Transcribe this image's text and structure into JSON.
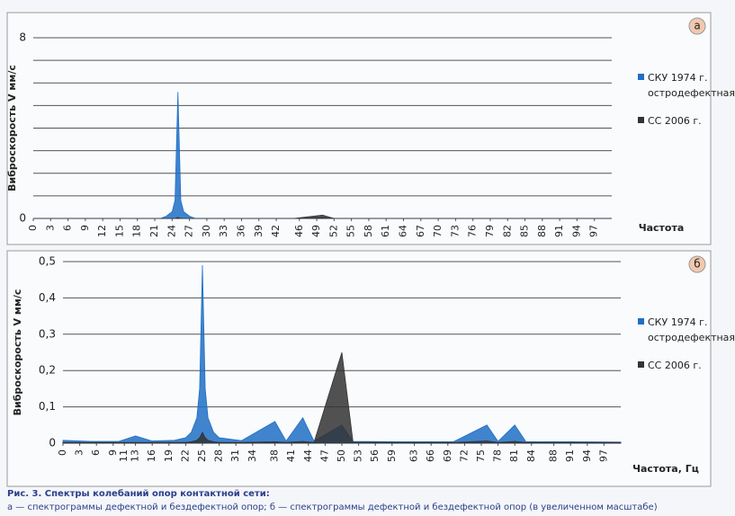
{
  "chart_data": [
    {
      "type": "area",
      "badge": "а",
      "ylabel": "Виброскорость V мм/с",
      "xlabel": "Частота",
      "xlim": [
        0,
        100
      ],
      "xticks": [
        0,
        3,
        6,
        9,
        12,
        15,
        18,
        21,
        24,
        27,
        30,
        33,
        36,
        39,
        42,
        46,
        49,
        52,
        55,
        58,
        61,
        64,
        67,
        70,
        73,
        76,
        79,
        82,
        85,
        88,
        91,
        94,
        97
      ],
      "ylim": [
        0,
        8
      ],
      "yticks": [
        0,
        8
      ],
      "ygrid": [
        1,
        2,
        3,
        4,
        5,
        6,
        7
      ],
      "x": [
        0,
        5,
        10,
        13,
        16,
        20,
        22,
        23,
        24,
        24.5,
        25,
        25.5,
        26,
        27,
        28,
        32,
        38,
        40,
        43,
        45,
        50,
        52,
        60,
        70,
        76,
        78,
        81,
        83,
        90,
        100
      ],
      "series": [
        {
          "name": "СКУ 1974 г. остродефектная",
          "color": "#1f6fc5",
          "values": [
            0,
            0,
            0,
            0,
            0,
            0,
            0,
            0.1,
            0.3,
            0.8,
            5.6,
            0.8,
            0.3,
            0.1,
            0,
            0,
            0,
            0,
            0,
            0,
            0.05,
            0,
            0,
            0,
            0,
            0,
            0,
            0,
            0,
            0
          ]
        },
        {
          "name": "СС 2006 г.",
          "color": "#333333",
          "values": [
            0,
            0,
            0,
            0,
            0,
            0,
            0,
            0,
            0,
            0,
            0.05,
            0,
            0,
            0,
            0,
            0,
            0,
            0,
            0,
            0,
            0.15,
            0,
            0,
            0,
            0,
            0,
            0,
            0,
            0,
            0
          ]
        }
      ]
    },
    {
      "type": "area",
      "badge": "б",
      "ylabel": "Виброскорость V мм/с",
      "xlabel": "Частота, Гц",
      "xlim": [
        0,
        100
      ],
      "xticks": [
        0,
        3,
        6,
        9,
        11,
        13,
        16,
        19,
        22,
        25,
        28,
        31,
        34,
        38,
        41,
        44,
        47,
        50,
        53,
        56,
        59,
        63,
        66,
        69,
        72,
        75,
        78,
        81,
        84,
        88,
        91,
        94,
        97
      ],
      "ylim": [
        0,
        0.5
      ],
      "yticks": [
        0,
        {
          "value": 0.1,
          "label": "0,1"
        },
        {
          "value": 0.2,
          "label": "0,2"
        },
        {
          "value": 0.3,
          "label": "0,3"
        },
        {
          "value": 0.4,
          "label": "0,4"
        },
        {
          "value": 0.5,
          "label": "0,5"
        }
      ],
      "x": [
        0,
        5,
        10,
        13,
        16,
        20,
        22,
        23,
        24,
        24.5,
        25,
        25.5,
        26,
        27,
        28,
        32,
        38,
        40,
        43,
        45,
        50,
        52,
        60,
        70,
        76,
        78,
        81,
        83,
        90,
        100
      ],
      "series": [
        {
          "name": "СКУ 1974 г. остродефектная",
          "color": "#1f6fc5",
          "values": [
            0.008,
            0.005,
            0.005,
            0.02,
            0.006,
            0.008,
            0.015,
            0.03,
            0.07,
            0.15,
            0.49,
            0.15,
            0.07,
            0.03,
            0.015,
            0.007,
            0.06,
            0.006,
            0.07,
            0.006,
            0.05,
            0.005,
            0.004,
            0.004,
            0.05,
            0.005,
            0.05,
            0.004,
            0.004,
            0.003
          ]
        },
        {
          "name": "СС 2006 г.",
          "color": "#333333",
          "values": [
            0.002,
            0.002,
            0.002,
            0.002,
            0.002,
            0.002,
            0.002,
            0.004,
            0.008,
            0.015,
            0.03,
            0.015,
            0.008,
            0.004,
            0.002,
            0.002,
            0.004,
            0.002,
            0.005,
            0.002,
            0.25,
            0.003,
            0.002,
            0.002,
            0.006,
            0.002,
            0.005,
            0.002,
            0.002,
            0.002
          ]
        }
      ]
    }
  ],
  "caption": {
    "title": "Рис. 3. Спектры колебаний опор контактной сети:",
    "text": "а — спектрограммы дефектной и бездефектной опор; б — спектрограммы дефектной и бездефектной опор (в увеличенном масштабе)"
  }
}
